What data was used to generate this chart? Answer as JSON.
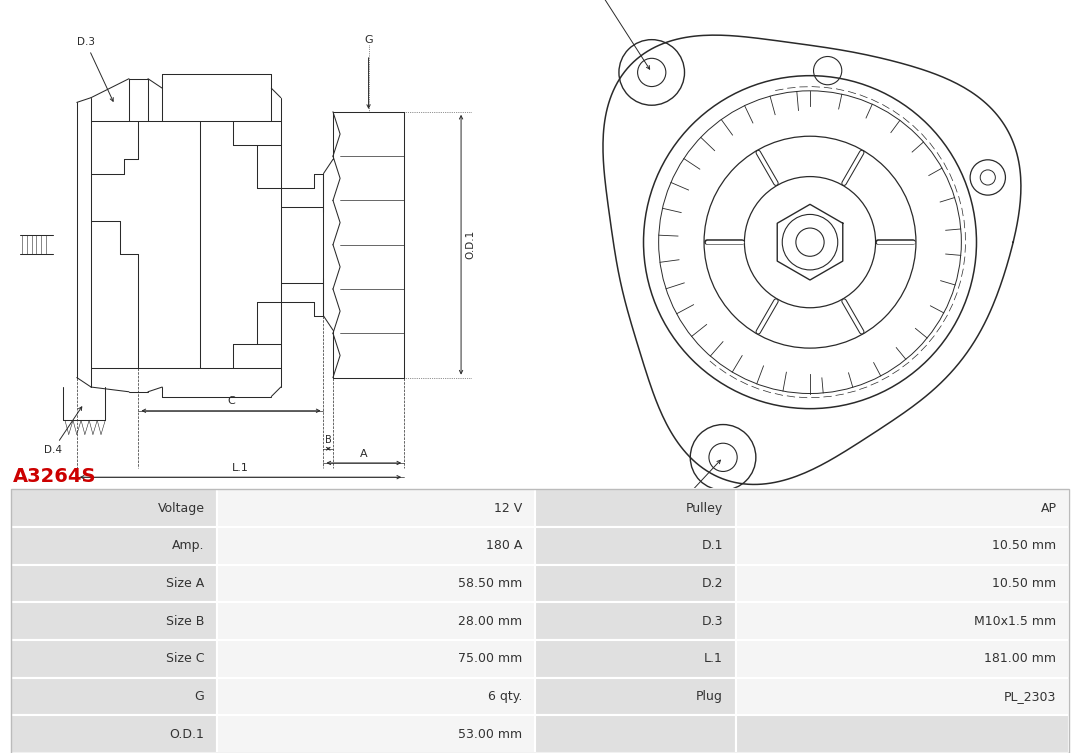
{
  "title": "A3264S",
  "title_color": "#cc0000",
  "title_fontsize": 14,
  "table_rows": [
    [
      "Voltage",
      "12 V",
      "Pulley",
      "AP"
    ],
    [
      "Amp.",
      "180 A",
      "D.1",
      "10.50 mm"
    ],
    [
      "Size A",
      "58.50 mm",
      "D.2",
      "10.50 mm"
    ],
    [
      "Size B",
      "28.00 mm",
      "D.3",
      "M10x1.5 mm"
    ],
    [
      "Size C",
      "75.00 mm",
      "L.1",
      "181.00 mm"
    ],
    [
      "G",
      "6 qty.",
      "Plug",
      "PL_2303"
    ],
    [
      "O.D.1",
      "53.00 mm",
      "",
      ""
    ]
  ],
  "bg_color_label": "#e0e0e0",
  "bg_color_value": "#f5f5f5",
  "bg_color_empty": "#e0e0e0",
  "text_color": "#333333",
  "font_size_table": 9,
  "lc": "#2a2a2a"
}
